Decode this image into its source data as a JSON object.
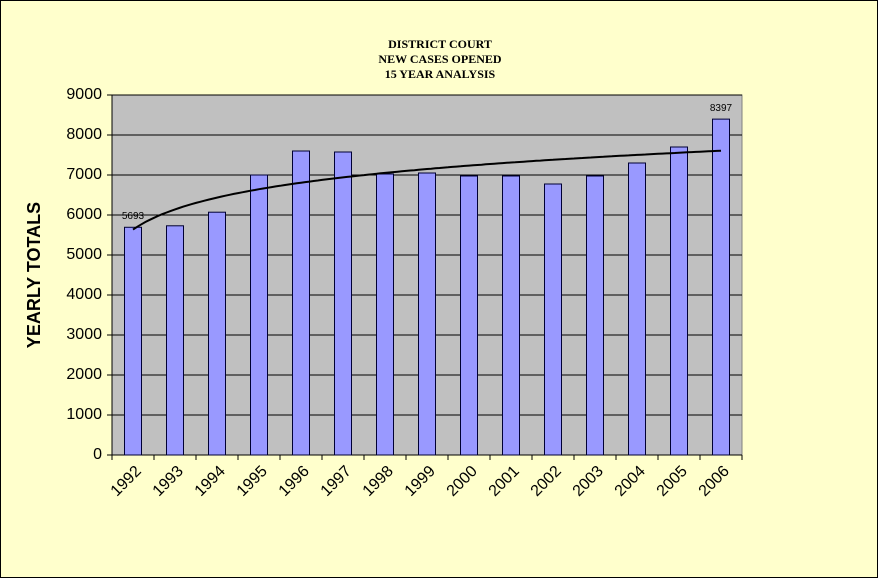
{
  "chart_data": {
    "type": "bar",
    "title": [
      "DISTRICT COURT",
      "NEW CASES OPENED",
      "15 YEAR ANALYSIS"
    ],
    "y_label": "YEARLY TOTALS",
    "categories": [
      "1992",
      "1993",
      "1994",
      "1995",
      "1996",
      "1997",
      "1998",
      "1999",
      "2000",
      "2001",
      "2002",
      "2003",
      "2004",
      "2005",
      "2006"
    ],
    "values": [
      5693,
      5730,
      6070,
      7000,
      7600,
      7575,
      7025,
      7050,
      6975,
      6975,
      6775,
      6975,
      7300,
      7700,
      8397
    ],
    "value_labels": [
      "5693",
      null,
      null,
      null,
      null,
      null,
      null,
      null,
      null,
      null,
      null,
      null,
      null,
      null,
      "8397"
    ],
    "color": "#9999ff",
    "trendline": "logarithmic",
    "ylim": [
      0,
      9000
    ],
    "yticks": [
      0,
      1000,
      2000,
      3000,
      4000,
      5000,
      6000,
      7000,
      8000,
      9000
    ],
    "grid": true
  }
}
